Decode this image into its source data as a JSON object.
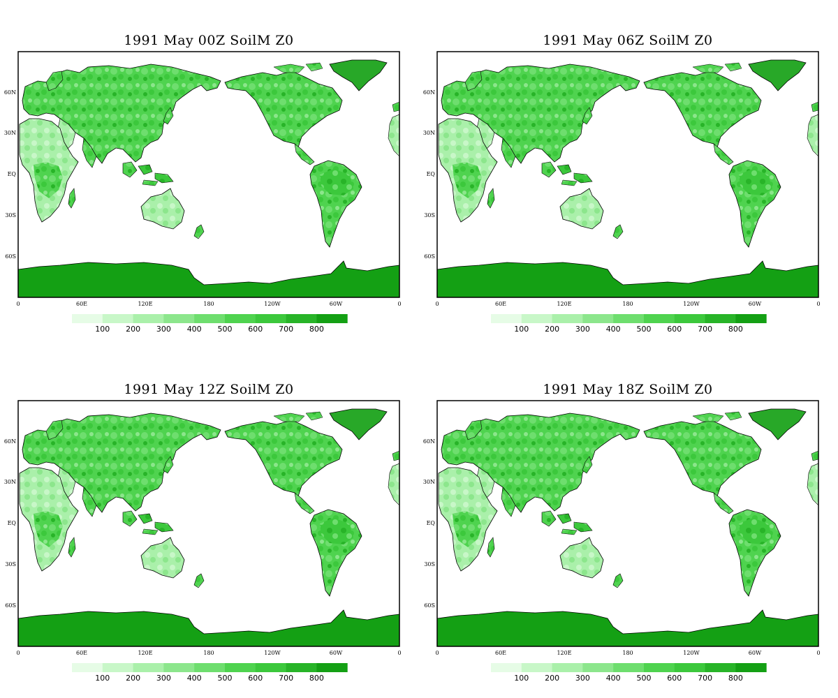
{
  "panels": [
    {
      "title": "1991 May  00Z SoilM Z0"
    },
    {
      "title": "1991  May 06Z SoilM Z0"
    },
    {
      "title": "1991  May 12Z SoilM Z0"
    },
    {
      "title": "1991  May 18Z SoilM Z0"
    }
  ],
  "x_tick_labels": [
    "0",
    "60E",
    "120E",
    "180",
    "120W",
    "60W",
    "0"
  ],
  "y_tick_labels": [
    "60N",
    "30N",
    "EQ",
    "30S",
    "60S"
  ],
  "colorbar": {
    "labels": [
      "100",
      "200",
      "300",
      "400",
      "500",
      "600",
      "700",
      "800"
    ],
    "colors": [
      "#e6fce6",
      "#c8f7c8",
      "#aaf0aa",
      "#8ce68c",
      "#6ede6e",
      "#4fd34f",
      "#3cc83c",
      "#28b428",
      "#14a014"
    ]
  },
  "map_colors": {
    "ocean": "#ffffff",
    "coastline": "#000000",
    "antarctica": "#14a014",
    "greenland": "#28a828"
  }
}
